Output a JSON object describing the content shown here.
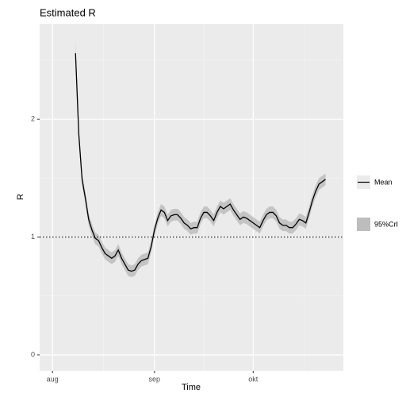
{
  "chart_data": {
    "type": "line",
    "title": "Estimated R",
    "x_label": "Time",
    "y_label": "R",
    "x": [
      7,
      8,
      9,
      10,
      11,
      12,
      13,
      14,
      15,
      16,
      17,
      18,
      19,
      20,
      21,
      22,
      23,
      24,
      25,
      26,
      27,
      28,
      29,
      30,
      31,
      32,
      33,
      34,
      35,
      36,
      37,
      38,
      39,
      40,
      41,
      42,
      43,
      44,
      45,
      46,
      47,
      48,
      49,
      50,
      51,
      52,
      53,
      54,
      55,
      56,
      57,
      58,
      59,
      60,
      61,
      62,
      63,
      64,
      65,
      66,
      67,
      68,
      69,
      70,
      71,
      72,
      73,
      74,
      75,
      76,
      77,
      78,
      79,
      80,
      81,
      82,
      83
    ],
    "series": [
      {
        "name": "Mean",
        "color": "#000000",
        "values": [
          2.56,
          1.87,
          1.49,
          1.33,
          1.15,
          1.06,
          0.99,
          0.97,
          0.91,
          0.86,
          0.84,
          0.82,
          0.84,
          0.89,
          0.82,
          0.77,
          0.72,
          0.71,
          0.72,
          0.77,
          0.8,
          0.81,
          0.82,
          0.92,
          1.06,
          1.16,
          1.23,
          1.21,
          1.14,
          1.18,
          1.19,
          1.19,
          1.16,
          1.12,
          1.1,
          1.07,
          1.08,
          1.08,
          1.16,
          1.21,
          1.21,
          1.18,
          1.14,
          1.21,
          1.26,
          1.24,
          1.26,
          1.28,
          1.23,
          1.19,
          1.15,
          1.17,
          1.16,
          1.14,
          1.12,
          1.1,
          1.08,
          1.14,
          1.19,
          1.21,
          1.21,
          1.18,
          1.12,
          1.1,
          1.1,
          1.08,
          1.08,
          1.11,
          1.15,
          1.14,
          1.12,
          1.21,
          1.31,
          1.39,
          1.45,
          1.47,
          1.49
        ]
      },
      {
        "name": "95%CrI",
        "color": "#bdbdbd",
        "upper": [
          2.66,
          1.94,
          1.54,
          1.38,
          1.2,
          1.11,
          1.04,
          1.02,
          0.96,
          0.91,
          0.89,
          0.87,
          0.89,
          0.94,
          0.87,
          0.82,
          0.77,
          0.76,
          0.77,
          0.82,
          0.85,
          0.86,
          0.87,
          0.97,
          1.11,
          1.21,
          1.28,
          1.26,
          1.19,
          1.23,
          1.24,
          1.24,
          1.21,
          1.17,
          1.15,
          1.12,
          1.13,
          1.13,
          1.21,
          1.26,
          1.26,
          1.23,
          1.19,
          1.26,
          1.31,
          1.29,
          1.31,
          1.33,
          1.28,
          1.24,
          1.2,
          1.22,
          1.21,
          1.19,
          1.17,
          1.15,
          1.13,
          1.19,
          1.24,
          1.26,
          1.26,
          1.23,
          1.17,
          1.15,
          1.15,
          1.13,
          1.13,
          1.16,
          1.2,
          1.19,
          1.17,
          1.26,
          1.36,
          1.44,
          1.5,
          1.52,
          1.54
        ],
        "lower": [
          2.48,
          1.81,
          1.44,
          1.28,
          1.1,
          1.01,
          0.94,
          0.92,
          0.86,
          0.81,
          0.79,
          0.77,
          0.79,
          0.84,
          0.77,
          0.72,
          0.67,
          0.66,
          0.67,
          0.72,
          0.75,
          0.76,
          0.77,
          0.87,
          1.01,
          1.11,
          1.18,
          1.16,
          1.09,
          1.13,
          1.14,
          1.14,
          1.11,
          1.07,
          1.05,
          1.02,
          1.03,
          1.03,
          1.11,
          1.16,
          1.16,
          1.13,
          1.09,
          1.16,
          1.21,
          1.19,
          1.21,
          1.23,
          1.18,
          1.14,
          1.1,
          1.12,
          1.11,
          1.09,
          1.07,
          1.05,
          1.03,
          1.09,
          1.14,
          1.16,
          1.16,
          1.13,
          1.07,
          1.05,
          1.05,
          1.03,
          1.03,
          1.06,
          1.1,
          1.09,
          1.07,
          1.16,
          1.26,
          1.34,
          1.4,
          1.42,
          1.44
        ]
      }
    ],
    "xlim": [
      -3.9,
      88.4
    ],
    "ylim": [
      -0.135,
      2.81
    ],
    "xticks": [
      {
        "value": 0,
        "label": "aug"
      },
      {
        "value": 31,
        "label": "sep"
      },
      {
        "value": 61,
        "label": "okt"
      }
    ],
    "yticks": [
      0,
      1,
      2
    ],
    "x_minor_grid": [
      15.5,
      46,
      76.5
    ],
    "y_minor_grid": [
      0.5,
      1.5,
      2.5
    ],
    "hline": 1,
    "grid": true,
    "legend": "right"
  }
}
